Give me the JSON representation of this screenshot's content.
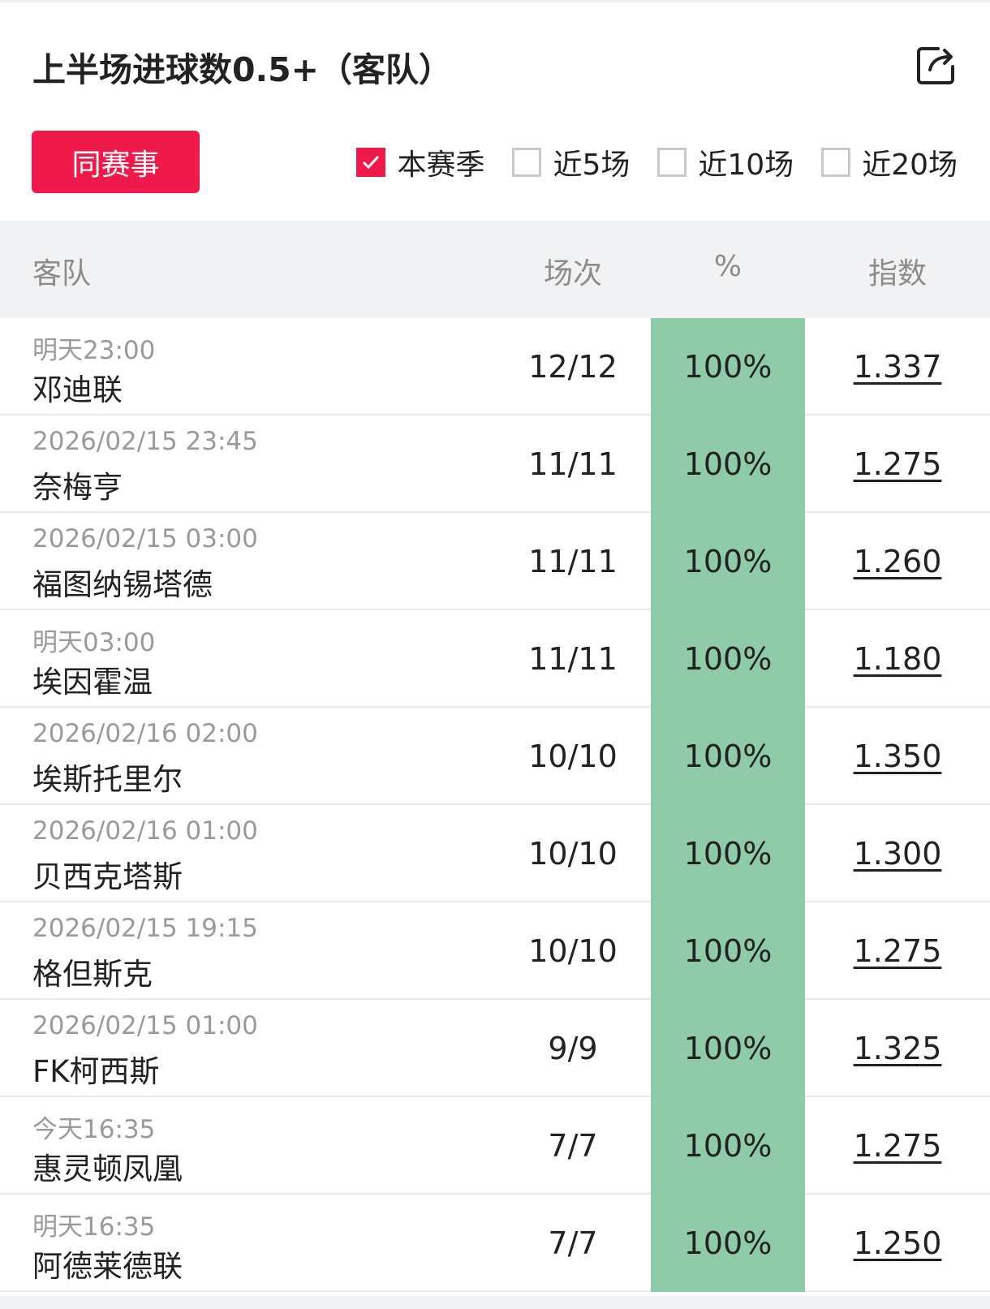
{
  "title": "上半场进球数0.5+（客队）",
  "same_event_button": "同赛事",
  "filters": [
    {
      "label": "本赛季",
      "checked": true
    },
    {
      "label": "近5场",
      "checked": false
    },
    {
      "label": "近10场",
      "checked": false
    },
    {
      "label": "近20场",
      "checked": false
    }
  ],
  "accent_color": "#ef1a4a",
  "highlight_color": "#8fcba8",
  "columns": {
    "team": "客队",
    "count": "场次",
    "pct": "%",
    "index": "指数"
  },
  "rows": [
    {
      "time": "明天23:00",
      "team": "邓迪联",
      "count": "12/12",
      "pct": "100%",
      "index": "1.337"
    },
    {
      "time": "2026/02/15 23:45",
      "team": "奈梅亨",
      "count": "11/11",
      "pct": "100%",
      "index": "1.275"
    },
    {
      "time": "2026/02/15 03:00",
      "team": "福图纳锡塔德",
      "count": "11/11",
      "pct": "100%",
      "index": "1.260"
    },
    {
      "time": "明天03:00",
      "team": "埃因霍温",
      "count": "11/11",
      "pct": "100%",
      "index": "1.180"
    },
    {
      "time": "2026/02/16 02:00",
      "team": "埃斯托里尔",
      "count": "10/10",
      "pct": "100%",
      "index": "1.350"
    },
    {
      "time": "2026/02/16 01:00",
      "team": "贝西克塔斯",
      "count": "10/10",
      "pct": "100%",
      "index": "1.300"
    },
    {
      "time": "2026/02/15 19:15",
      "team": "格但斯克",
      "count": "10/10",
      "pct": "100%",
      "index": "1.275"
    },
    {
      "time": "2026/02/15 01:00",
      "team": "FK柯西斯",
      "count": "9/9",
      "pct": "100%",
      "index": "1.325"
    },
    {
      "time": "今天16:35",
      "team": "惠灵顿凤凰",
      "count": "7/7",
      "pct": "100%",
      "index": "1.275"
    },
    {
      "time": "明天16:35",
      "team": "阿德莱德联",
      "count": "7/7",
      "pct": "100%",
      "index": "1.250"
    }
  ]
}
